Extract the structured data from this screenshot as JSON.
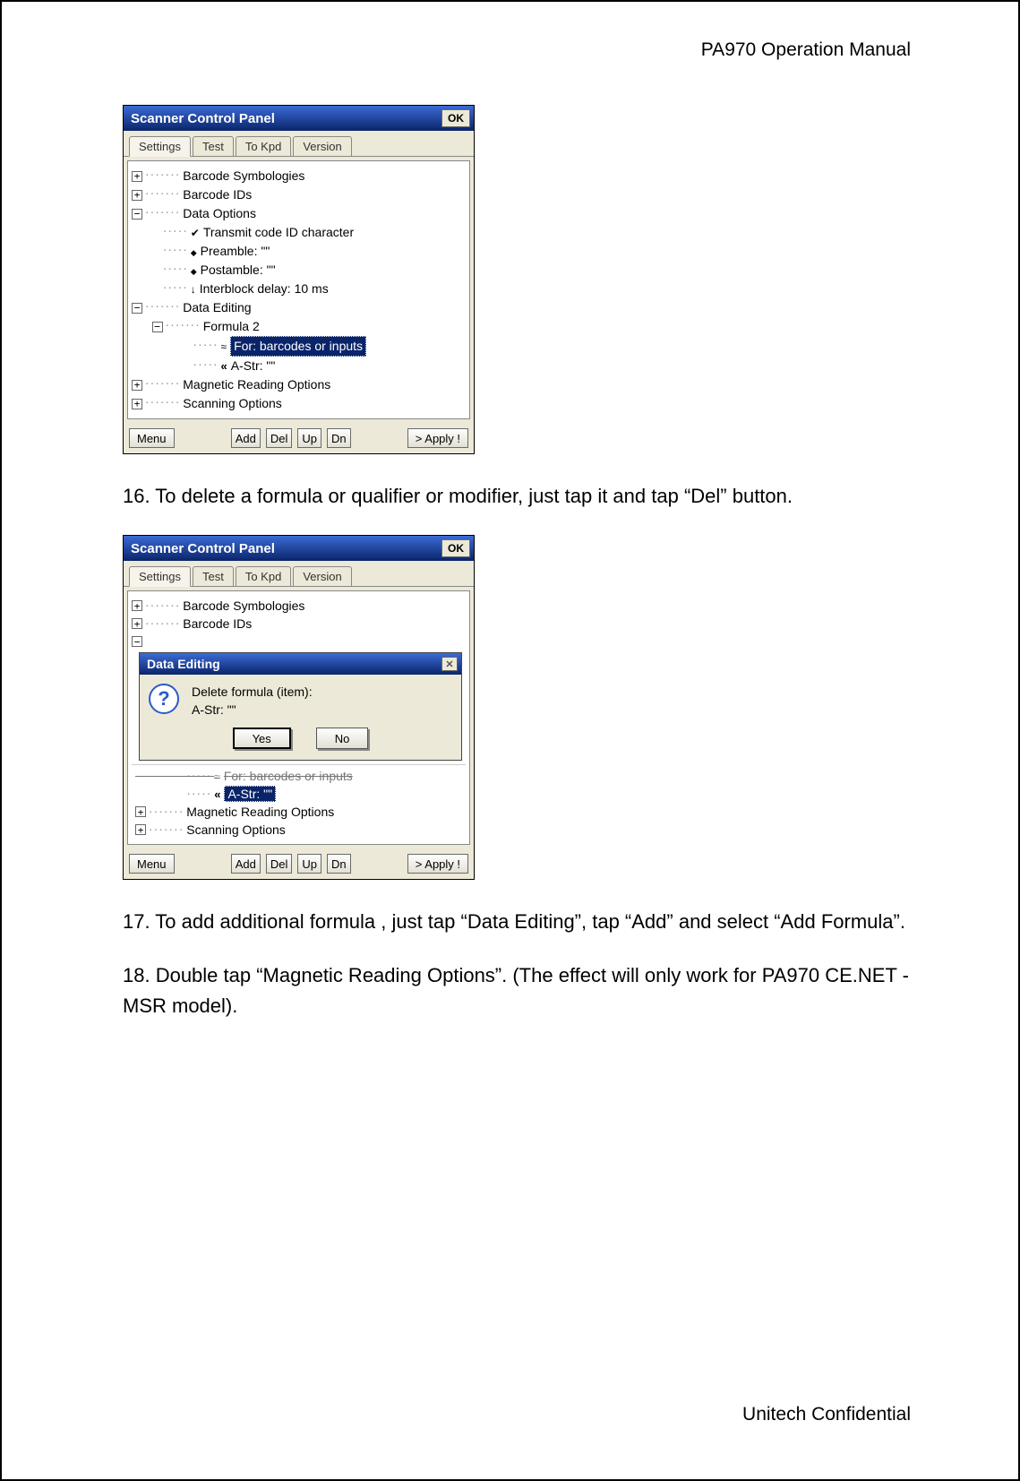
{
  "doc": {
    "header": "PA970 Operation Manual",
    "footer": "Unitech Confidential",
    "step16": "16. To delete a formula or qualifier or modifier, just tap it and tap “Del” button.",
    "step17": "17. To add additional formula , just tap “Data Editing”, tap “Add” and select “Add Formula”.",
    "step18": "18. Double tap “Magnetic Reading Options”. (The effect will only work for PA970 CE.NET -MSR model)."
  },
  "win": {
    "title": "Scanner Control Panel",
    "ok": "OK",
    "tabs": {
      "settings": "Settings",
      "test": "Test",
      "tokpd": "To Kpd",
      "version": "Version"
    },
    "tree1": {
      "barcode_sym": "Barcode Symbologies",
      "barcode_ids": "Barcode IDs",
      "data_options": "Data Options",
      "transmit": "Transmit code ID character",
      "preamble": "Preamble: \"\"",
      "postamble": "Postamble: \"\"",
      "interblock": "Interblock delay: 10 ms",
      "data_editing": "Data Editing",
      "formula2": "Formula 2",
      "for_barcodes": "For: barcodes or inputs",
      "astr": "A-Str: \"\"",
      "magnetic": "Magnetic Reading Options",
      "scanning": "Scanning Options"
    },
    "tree2": {
      "barcode_sym": "Barcode Symbologies",
      "barcode_ids": "Barcode IDs",
      "for_obsc": "For: barcodes or inputs",
      "astr_sel": "A-Str: \"\"",
      "magnetic": "Magnetic Reading Options",
      "scanning": "Scanning Options"
    },
    "dialog": {
      "title": "Data Editing",
      "line1": "Delete formula (item):",
      "line2": "A-Str: \"\"",
      "yes": "Yes",
      "no": "No"
    },
    "buttons": {
      "menu": "Menu",
      "add": "Add",
      "del": "Del",
      "up": "Up",
      "dn": "Dn",
      "apply": "> Apply !"
    }
  }
}
